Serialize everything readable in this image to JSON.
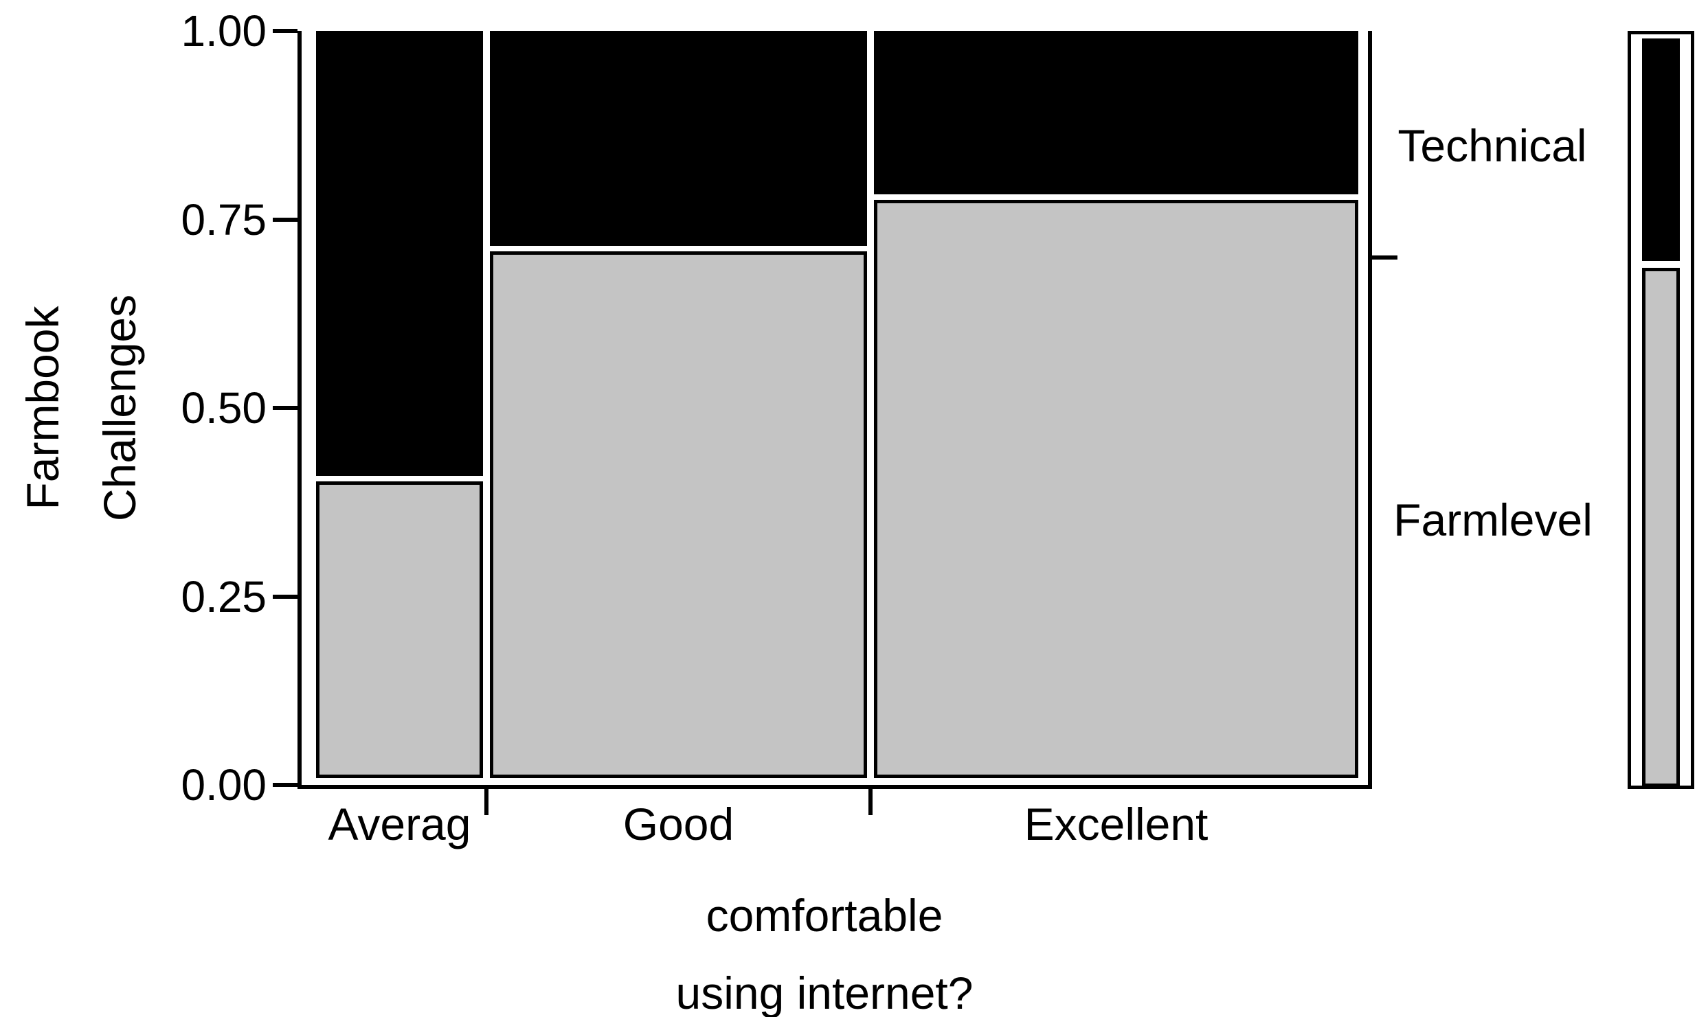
{
  "chart_data": {
    "type": "mosaic",
    "xlabel": "comfortable using internet?",
    "xlabel_lines": [
      "comfortable",
      "using internet?"
    ],
    "ylabel": "Farmbook Challenges",
    "ylabel_lines": [
      "Farmbook",
      "Challenges"
    ],
    "x_categories": [
      "Averag",
      "Good",
      "Excellent"
    ],
    "y_categories": [
      "Technical",
      "Farmlevel"
    ],
    "y_tick_labels": [
      "1.00",
      "0.75",
      "0.50",
      "0.25",
      "0.00"
    ],
    "ylim": [
      0,
      1
    ],
    "grid": false,
    "legend_position": "right-spine-bar",
    "series": [
      {
        "category": "Averag",
        "width_fraction": 0.162,
        "farmlevel": 0.4,
        "technical": 0.6
      },
      {
        "category": "Good",
        "width_fraction": 0.367,
        "farmlevel": 0.71,
        "technical": 0.29
      },
      {
        "category": "Excellent",
        "width_fraction": 0.471,
        "farmlevel": 0.78,
        "technical": 0.22
      }
    ],
    "marginal": {
      "technical": 0.3,
      "farmlevel": 0.7
    },
    "colors": {
      "technical": "#000000",
      "farmlevel": "#C4C4C4",
      "axis": "#000000",
      "text": "#000000",
      "background": "#ffffff"
    }
  }
}
